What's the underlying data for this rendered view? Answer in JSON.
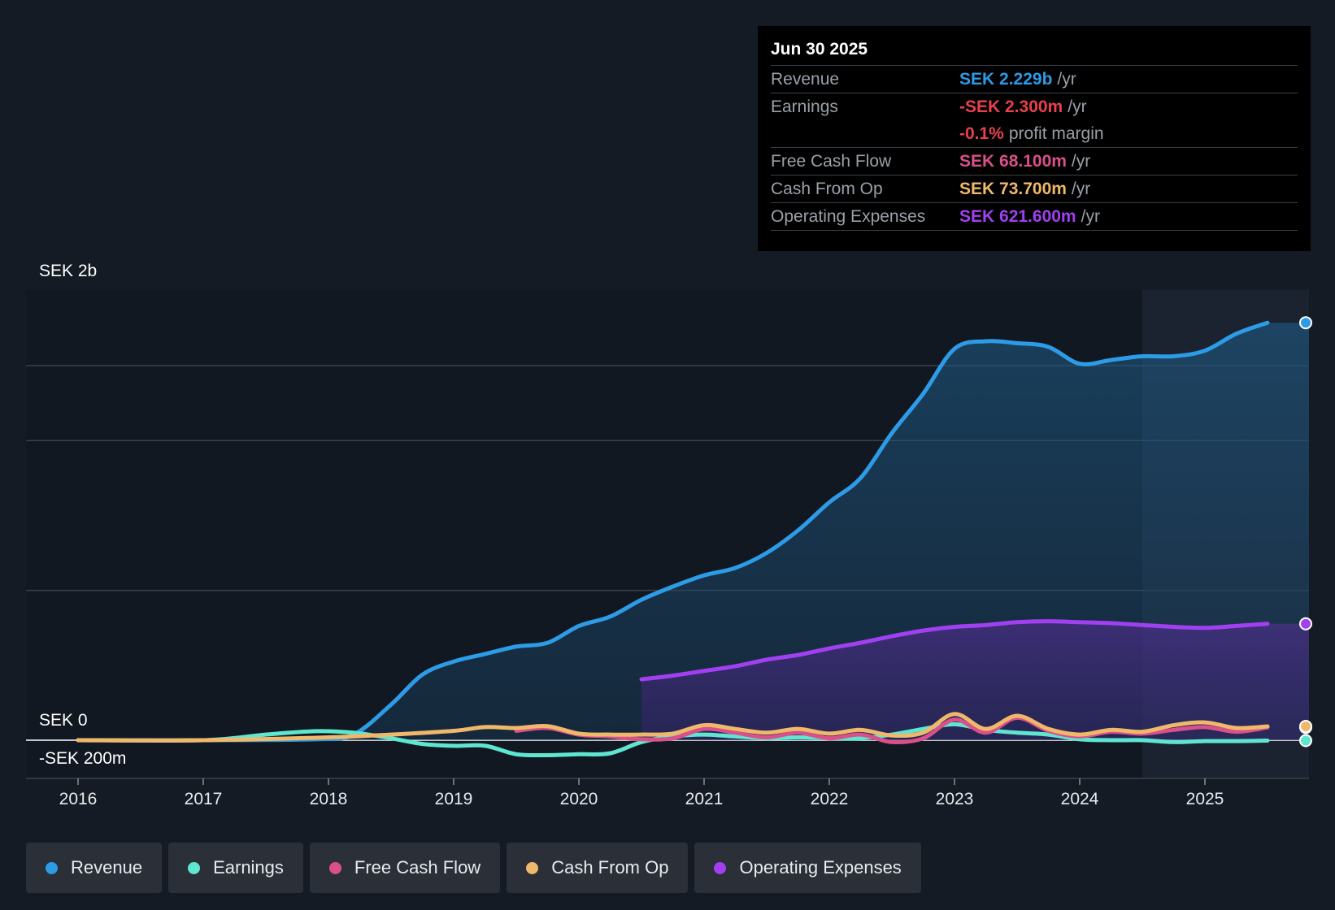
{
  "tooltip": {
    "date": "Jun 30 2025",
    "rows": [
      {
        "label": "Revenue",
        "value": "SEK 2.229b",
        "unit": "/yr",
        "color": "#2d9be6"
      },
      {
        "label": "Earnings",
        "value": "-SEK 2.300m",
        "unit": "/yr",
        "color": "#e8414b"
      },
      {
        "label": "",
        "value": "-0.1%",
        "unit": "profit margin",
        "color": "#e8414b"
      },
      {
        "label": "Free Cash Flow",
        "value": "SEK 68.100m",
        "unit": "/yr",
        "color": "#d9508a"
      },
      {
        "label": "Cash From Op",
        "value": "SEK 73.700m",
        "unit": "/yr",
        "color": "#f0b86a"
      },
      {
        "label": "Operating Expenses",
        "value": "SEK 621.600m",
        "unit": "/yr",
        "color": "#a040f0"
      }
    ]
  },
  "legend": [
    {
      "label": "Revenue",
      "color": "#2d9be6"
    },
    {
      "label": "Earnings",
      "color": "#5ee6d0"
    },
    {
      "label": "Free Cash Flow",
      "color": "#d9508a"
    },
    {
      "label": "Cash From Op",
      "color": "#f0b86a"
    },
    {
      "label": "Operating Expenses",
      "color": "#a040f0"
    }
  ],
  "chart_data": {
    "type": "line",
    "ylabel_top": "SEK 2b",
    "ylabel_zero": "SEK 0",
    "ylabel_bottom": "-SEK 200m",
    "ylim": [
      -200,
      2400
    ],
    "xlim": [
      2015.6,
      2025.5
    ],
    "forecast_start": 2024.5,
    "x_ticks": [
      {
        "value": 2016,
        "label": "2016"
      },
      {
        "value": 2017,
        "label": "2017"
      },
      {
        "value": 2018,
        "label": "2018"
      },
      {
        "value": 2019,
        "label": "2019"
      },
      {
        "value": 2020,
        "label": "2020"
      },
      {
        "value": 2021,
        "label": "2021"
      },
      {
        "value": 2022,
        "label": "2022"
      },
      {
        "value": 2023,
        "label": "2023"
      },
      {
        "value": 2024,
        "label": "2024"
      },
      {
        "value": 2025,
        "label": "2025"
      }
    ],
    "series": [
      {
        "name": "Revenue",
        "color": "#2d9be6",
        "fill": true,
        "x": [
          2016,
          2017,
          2017.9,
          2018.2,
          2018.5,
          2018.75,
          2019,
          2019.25,
          2019.5,
          2019.75,
          2020,
          2020.25,
          2020.5,
          2020.75,
          2021,
          2021.25,
          2021.5,
          2021.75,
          2022,
          2022.25,
          2022.5,
          2022.75,
          2023,
          2023.25,
          2023.5,
          2023.75,
          2024,
          2024.25,
          2024.5,
          2024.75,
          2025,
          2025.25,
          2025.5
        ],
        "y": [
          0,
          0,
          5,
          30,
          190,
          350,
          420,
          460,
          500,
          520,
          610,
          660,
          750,
          820,
          880,
          920,
          1000,
          1120,
          1270,
          1400,
          1640,
          1850,
          2090,
          2130,
          2120,
          2100,
          2010,
          2030,
          2050,
          2050,
          2080,
          2170,
          2229
        ]
      },
      {
        "name": "Operating Expenses",
        "color": "#a040f0",
        "fill": true,
        "x": [
          2020.5,
          2020.75,
          2021,
          2021.25,
          2021.5,
          2021.75,
          2022,
          2022.25,
          2022.5,
          2022.75,
          2023,
          2023.25,
          2023.5,
          2023.75,
          2024,
          2024.25,
          2024.5,
          2024.75,
          2025,
          2025.25,
          2025.5
        ],
        "y": [
          325,
          345,
          370,
          395,
          430,
          455,
          490,
          520,
          555,
          585,
          605,
          615,
          630,
          635,
          630,
          625,
          615,
          605,
          600,
          610,
          621.6
        ]
      },
      {
        "name": "Earnings",
        "color": "#5ee6d0",
        "fill": false,
        "x": [
          2016,
          2017,
          2017.5,
          2017.9,
          2018.2,
          2018.5,
          2018.75,
          2019,
          2019.25,
          2019.5,
          2019.75,
          2020,
          2020.25,
          2020.5,
          2020.75,
          2021,
          2021.25,
          2021.5,
          2021.75,
          2022,
          2022.25,
          2022.5,
          2022.75,
          2023,
          2023.25,
          2023.5,
          2023.75,
          2024,
          2024.25,
          2024.5,
          2024.75,
          2025,
          2025.25,
          2025.5
        ],
        "y": [
          0,
          0,
          30,
          48,
          40,
          10,
          -20,
          -30,
          -30,
          -75,
          -80,
          -75,
          -70,
          -10,
          20,
          30,
          20,
          10,
          15,
          10,
          10,
          30,
          60,
          85,
          55,
          40,
          30,
          5,
          0,
          0,
          -10,
          -5,
          -5,
          -2.3
        ]
      },
      {
        "name": "Free Cash Flow",
        "color": "#d9508a",
        "fill": false,
        "x": [
          2019.5,
          2019.75,
          2020,
          2020.25,
          2020.5,
          2020.75,
          2021,
          2021.25,
          2021.5,
          2021.75,
          2022,
          2022.25,
          2022.5,
          2022.75,
          2023,
          2023.25,
          2023.5,
          2023.75,
          2024,
          2024.25,
          2024.5,
          2024.75,
          2025,
          2025.25,
          2025.5
        ],
        "y": [
          50,
          65,
          30,
          20,
          5,
          10,
          60,
          40,
          15,
          40,
          10,
          30,
          -10,
          10,
          110,
          40,
          120,
          50,
          20,
          45,
          35,
          55,
          70,
          45,
          68.1
        ]
      },
      {
        "name": "Cash From Op",
        "color": "#f0b86a",
        "fill": false,
        "x": [
          2016,
          2017,
          2018,
          2018.5,
          2019,
          2019.25,
          2019.5,
          2019.75,
          2020,
          2020.25,
          2020.5,
          2020.75,
          2021,
          2021.25,
          2021.5,
          2021.75,
          2022,
          2022.25,
          2022.5,
          2022.75,
          2023,
          2023.25,
          2023.5,
          2023.75,
          2024,
          2024.25,
          2024.5,
          2024.75,
          2025,
          2025.25,
          2025.5
        ],
        "y": [
          0,
          0,
          15,
          30,
          50,
          70,
          65,
          75,
          35,
          30,
          30,
          35,
          80,
          60,
          40,
          60,
          35,
          55,
          25,
          40,
          140,
          60,
          130,
          60,
          30,
          55,
          45,
          80,
          95,
          65,
          73.7
        ]
      }
    ]
  }
}
